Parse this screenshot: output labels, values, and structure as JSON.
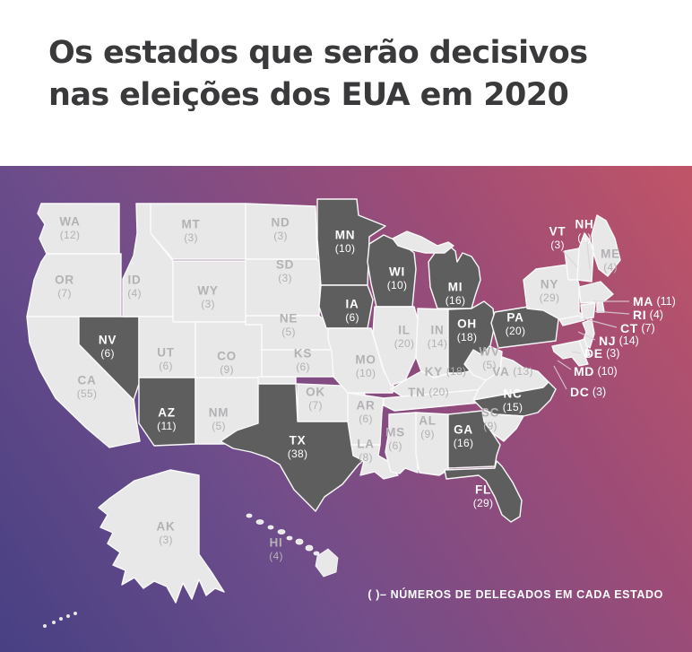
{
  "header": {
    "title_line1": "Os estados que serão decisivos",
    "title_line2": "nas eleições dos EUA em 2020"
  },
  "legend": {
    "note": "( )– NÚMEROS DE DELEGADOS EM CADA ESTADO"
  },
  "colors": {
    "title_text": "#3a393b",
    "state_fill": "#e9e8e8",
    "highlight_fill": "#5e5e5e",
    "gray_label": "#b3b1b4",
    "white_label": "#ffffff",
    "gradient_start": "#474083",
    "gradient_end": "#c05467"
  },
  "map": {
    "states": [
      {
        "code": "WA",
        "delegates": 12,
        "highlighted": false
      },
      {
        "code": "OR",
        "delegates": 7,
        "highlighted": false
      },
      {
        "code": "CA",
        "delegates": 55,
        "highlighted": false
      },
      {
        "code": "NV",
        "delegates": 6,
        "highlighted": true
      },
      {
        "code": "ID",
        "delegates": 4,
        "highlighted": false
      },
      {
        "code": "MT",
        "delegates": 3,
        "highlighted": false
      },
      {
        "code": "WY",
        "delegates": 3,
        "highlighted": false
      },
      {
        "code": "UT",
        "delegates": 6,
        "highlighted": false
      },
      {
        "code": "AZ",
        "delegates": 11,
        "highlighted": true
      },
      {
        "code": "NM",
        "delegates": 5,
        "highlighted": false
      },
      {
        "code": "CO",
        "delegates": 9,
        "highlighted": false
      },
      {
        "code": "ND",
        "delegates": 3,
        "highlighted": false
      },
      {
        "code": "SD",
        "delegates": 3,
        "highlighted": false
      },
      {
        "code": "NE",
        "delegates": 5,
        "highlighted": false
      },
      {
        "code": "KS",
        "delegates": 6,
        "highlighted": false
      },
      {
        "code": "OK",
        "delegates": 7,
        "highlighted": false
      },
      {
        "code": "TX",
        "delegates": 38,
        "highlighted": true
      },
      {
        "code": "MN",
        "delegates": 10,
        "highlighted": true
      },
      {
        "code": "IA",
        "delegates": 6,
        "highlighted": true
      },
      {
        "code": "MO",
        "delegates": 10,
        "highlighted": false
      },
      {
        "code": "AR",
        "delegates": 6,
        "highlighted": false
      },
      {
        "code": "LA",
        "delegates": 8,
        "highlighted": false
      },
      {
        "code": "WI",
        "delegates": 10,
        "highlighted": true
      },
      {
        "code": "IL",
        "delegates": 20,
        "highlighted": false
      },
      {
        "code": "MS",
        "delegates": 6,
        "highlighted": false
      },
      {
        "code": "AL",
        "delegates": 9,
        "highlighted": false
      },
      {
        "code": "IN",
        "delegates": 14,
        "highlighted": false
      },
      {
        "code": "KY",
        "delegates": 18,
        "highlighted": false
      },
      {
        "code": "TN",
        "delegates": 20,
        "highlighted": false
      },
      {
        "code": "MI",
        "delegates": 16,
        "highlighted": true
      },
      {
        "code": "OH",
        "delegates": 18,
        "highlighted": true
      },
      {
        "code": "WV",
        "delegates": 5,
        "highlighted": false
      },
      {
        "code": "VA",
        "delegates": 13,
        "highlighted": false
      },
      {
        "code": "NC",
        "delegates": 15,
        "highlighted": true
      },
      {
        "code": "SC",
        "delegates": 9,
        "highlighted": false
      },
      {
        "code": "GA",
        "delegates": 16,
        "highlighted": true
      },
      {
        "code": "FL",
        "delegates": 29,
        "highlighted": true
      },
      {
        "code": "PA",
        "delegates": 20,
        "highlighted": true
      },
      {
        "code": "NY",
        "delegates": 29,
        "highlighted": false
      },
      {
        "code": "NJ",
        "delegates": 14,
        "highlighted": false
      },
      {
        "code": "VT",
        "delegates": 3,
        "highlighted": false
      },
      {
        "code": "NH",
        "delegates": 4,
        "highlighted": false
      },
      {
        "code": "ME",
        "delegates": 4,
        "highlighted": false
      },
      {
        "code": "MA",
        "delegates": 11,
        "highlighted": false
      },
      {
        "code": "RI",
        "delegates": 4,
        "highlighted": false
      },
      {
        "code": "CT",
        "delegates": 7,
        "highlighted": false
      },
      {
        "code": "DE",
        "delegates": 3,
        "highlighted": false
      },
      {
        "code": "MD",
        "delegates": 10,
        "highlighted": false
      },
      {
        "code": "DC",
        "delegates": 3,
        "highlighted": false
      },
      {
        "code": "AK",
        "delegates": 3,
        "highlighted": false
      },
      {
        "code": "HI",
        "delegates": 4,
        "highlighted": false
      }
    ]
  }
}
